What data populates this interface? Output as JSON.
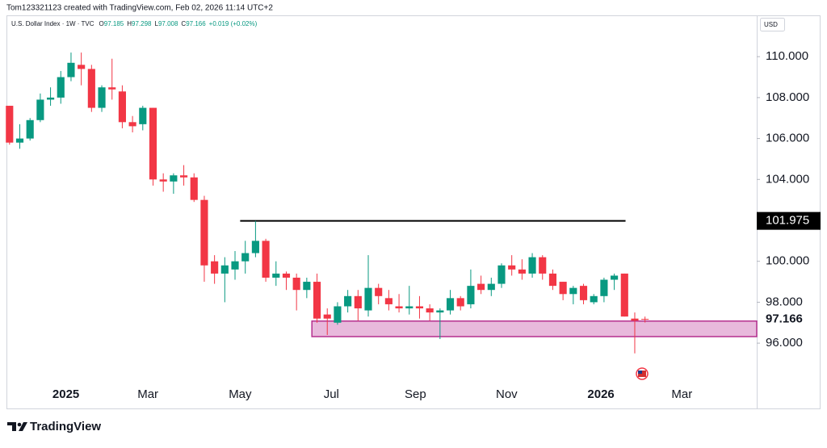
{
  "header": {
    "credit": "Tom123321123 created with TradingView.com, Feb 02, 2026 11:14 UTC+2"
  },
  "currency": "USD",
  "brand": "TradingView",
  "chart_data": {
    "type": "candlestick",
    "title": "U.S. Dollar Index · 1W · TVC",
    "ohlc_labels": [
      "O",
      "H",
      "L",
      "C"
    ],
    "change": "+0.019 (+0.02%)",
    "up_color": "#089981",
    "down_color": "#f23645",
    "open": [
      107.6,
      105.8,
      106.0,
      106.9,
      107.9,
      108.0,
      109.0,
      109.6,
      109.4,
      107.5,
      108.5,
      108.3,
      106.8,
      106.7,
      107.5,
      104.0,
      103.9,
      104.2,
      104.1,
      103.0,
      100.0,
      99.4,
      99.6,
      100.0,
      100.4,
      101.0,
      99.2,
      99.4,
      99.2,
      98.6,
      99.0,
      97.4,
      97.0,
      97.8,
      98.3,
      97.6,
      98.7,
      98.2,
      97.8,
      97.7,
      97.8,
      97.7,
      97.5,
      97.6,
      98.2,
      97.9,
      98.9,
      98.6,
      98.9,
      99.8,
      99.6,
      99.4,
      100.2,
      99.4,
      99.0,
      98.4,
      98.8,
      98.0,
      98.3,
      99.1,
      99.4,
      97.2,
      97.185
    ],
    "high": [
      107.6,
      106.7,
      107.0,
      108.2,
      108.5,
      109.3,
      110.2,
      110.2,
      109.6,
      108.6,
      109.9,
      108.6,
      107.1,
      107.6,
      107.5,
      104.3,
      104.3,
      104.7,
      104.3,
      103.2,
      100.3,
      100.2,
      100.5,
      101.0,
      101.975,
      101.1,
      100.0,
      99.5,
      99.4,
      99.2,
      99.4,
      97.7,
      98.0,
      98.6,
      98.6,
      100.3,
      98.9,
      98.6,
      98.4,
      98.8,
      98.3,
      97.9,
      97.7,
      98.6,
      98.3,
      99.6,
      99.3,
      99.2,
      99.9,
      100.3,
      100.1,
      100.4,
      100.3,
      99.6,
      99.0,
      98.8,
      98.9,
      98.4,
      99.2,
      99.4,
      99.4,
      97.5,
      97.298
    ],
    "low": [
      105.7,
      105.5,
      105.9,
      106.8,
      107.6,
      107.7,
      108.8,
      108.6,
      107.3,
      107.3,
      107.9,
      106.5,
      106.3,
      106.4,
      103.7,
      103.4,
      103.3,
      103.7,
      102.9,
      99.0,
      98.9,
      98.0,
      99.1,
      99.4,
      100.2,
      99.0,
      98.8,
      98.6,
      97.6,
      98.2,
      97.0,
      96.4,
      96.9,
      97.5,
      97.1,
      97.3,
      97.9,
      97.6,
      97.5,
      97.4,
      97.2,
      97.1,
      96.2,
      97.4,
      97.6,
      97.7,
      98.4,
      98.3,
      98.7,
      99.3,
      99.1,
      99.2,
      99.1,
      98.6,
      98.1,
      97.9,
      97.9,
      97.9,
      98.0,
      98.6,
      97.3,
      95.5,
      97.008
    ],
    "close": [
      105.8,
      106.0,
      106.9,
      107.9,
      108.0,
      109.0,
      109.7,
      109.4,
      107.5,
      108.5,
      108.4,
      106.8,
      106.6,
      107.5,
      104.0,
      103.9,
      104.2,
      104.1,
      103.0,
      99.8,
      99.4,
      99.8,
      100.0,
      100.4,
      101.0,
      99.2,
      99.4,
      99.2,
      98.6,
      99.0,
      97.2,
      97.2,
      97.8,
      98.3,
      97.7,
      98.7,
      98.3,
      97.9,
      97.7,
      97.8,
      97.7,
      97.5,
      97.6,
      98.2,
      97.8,
      98.8,
      98.6,
      98.9,
      99.8,
      99.6,
      99.4,
      100.2,
      99.4,
      98.8,
      98.4,
      98.7,
      98.1,
      98.3,
      99.1,
      99.3,
      97.3,
      97.1,
      97.166
    ],
    "xlim": [
      -0.3,
      72.9
    ],
    "xticks": [
      {
        "value": 5.5,
        "label": "2025"
      },
      {
        "value": 13.5,
        "label": "Mar"
      },
      {
        "value": 22.5,
        "label": "May"
      },
      {
        "value": 31.4,
        "label": "Jul"
      },
      {
        "value": 39.6,
        "label": "Sep"
      },
      {
        "value": 48.5,
        "label": "Nov"
      },
      {
        "value": 57.7,
        "label": "2026"
      },
      {
        "value": 65.6,
        "label": "Mar"
      }
    ],
    "ylim": [
      92.77,
      111.98
    ],
    "yticks": [
      {
        "value": 96,
        "label": "96.000"
      },
      {
        "value": 98,
        "label": "98.000"
      },
      {
        "value": 100,
        "label": "100.000"
      },
      {
        "value": 104,
        "label": "104.000"
      },
      {
        "value": 106,
        "label": "106.000"
      },
      {
        "value": 108,
        "label": "108.000"
      },
      {
        "value": 110,
        "label": "110.000"
      }
    ],
    "hline": {
      "value": 101.975,
      "x": [
        22.5,
        60.1
      ]
    },
    "zone": {
      "x": [
        29.5,
        72.9
      ],
      "y": [
        96.32,
        97.08
      ],
      "color": "#e8b9dc",
      "border": "#b5308f"
    }
  }
}
